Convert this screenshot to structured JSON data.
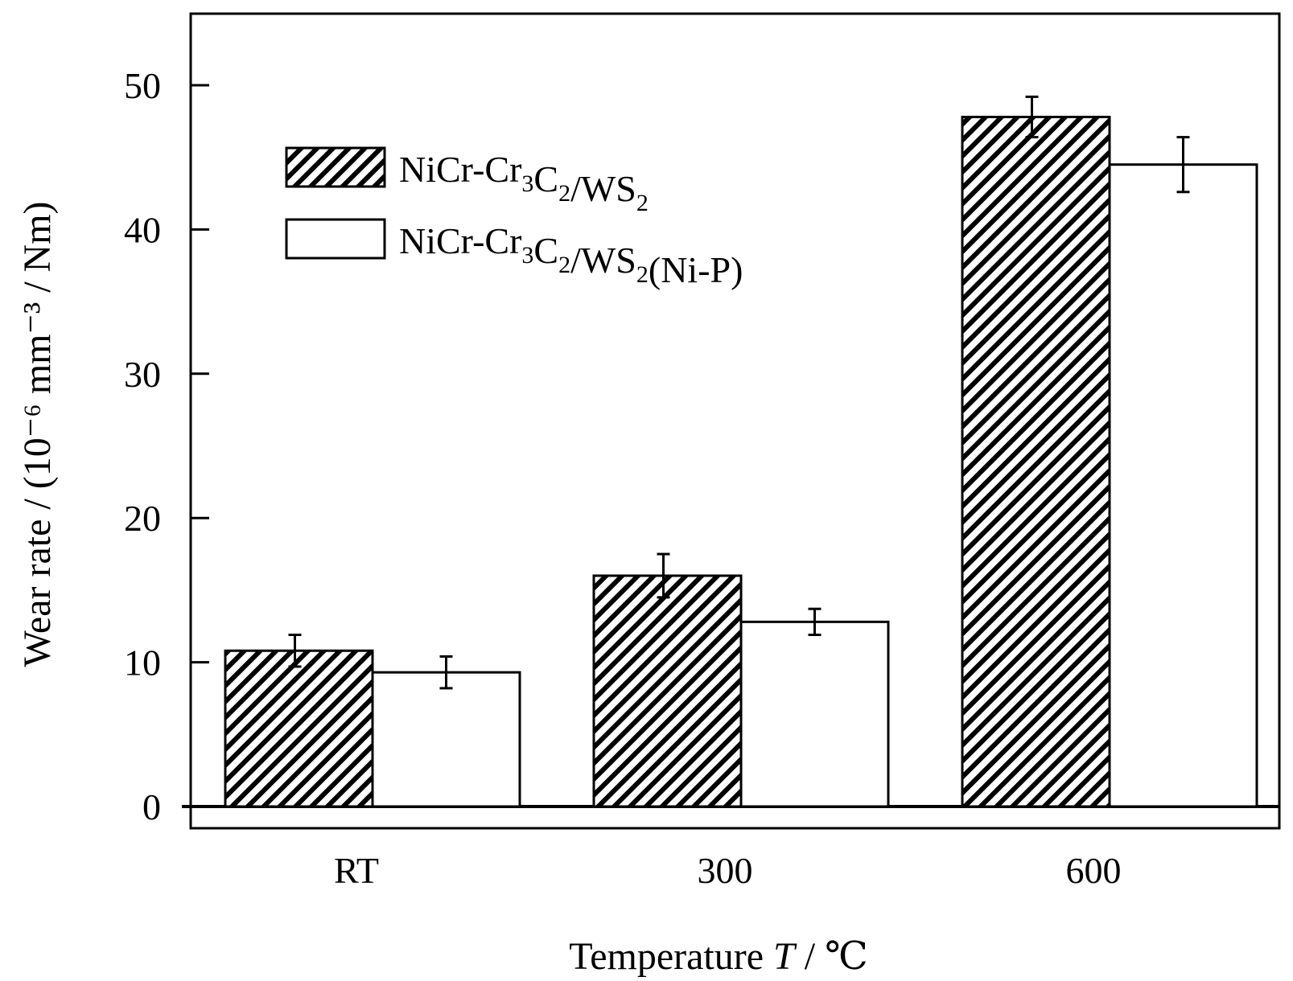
{
  "chart_data": {
    "type": "bar",
    "title": "",
    "xlabel": "Temperature T / ℃",
    "xlabel_parts": {
      "prefix": "Temperature ",
      "var": "T",
      "suffix": " / ℃"
    },
    "ylabel": "Wear rate / (10⁻⁶ mm⁻³ / Nm)",
    "categories": [
      "RT",
      "300",
      "600"
    ],
    "ylim": [
      0,
      55
    ],
    "yticks": [
      0,
      10,
      20,
      30,
      40,
      50
    ],
    "grid": false,
    "legend_position": "top-left",
    "series": [
      {
        "name": "NiCr-Cr3C2/WS2",
        "label_parts": [
          [
            "NiCr-Cr",
            "n"
          ],
          [
            "3",
            "sub"
          ],
          [
            "C",
            "n"
          ],
          [
            "2",
            "sub"
          ],
          [
            "/WS",
            "n"
          ],
          [
            "2",
            "sub"
          ]
        ],
        "pattern": "hatched",
        "values": [
          10.8,
          16.0,
          47.8
        ],
        "errors": [
          1.1,
          1.5,
          1.4
        ]
      },
      {
        "name": "NiCr-Cr3C2/WS2(Ni-P)",
        "label_parts": [
          [
            "NiCr-Cr",
            "n"
          ],
          [
            "3",
            "sub"
          ],
          [
            "C",
            "n"
          ],
          [
            "2",
            "sub"
          ],
          [
            "/WS",
            "n"
          ],
          [
            "2",
            "sub"
          ],
          [
            "(Ni-P)",
            "n"
          ]
        ],
        "pattern": "open",
        "values": [
          9.3,
          12.8,
          44.5
        ],
        "errors": [
          1.1,
          0.9,
          1.9
        ]
      }
    ],
    "colors": {
      "axis": "#000000",
      "bar_open": "#ffffff",
      "hatch": "#000000"
    }
  }
}
